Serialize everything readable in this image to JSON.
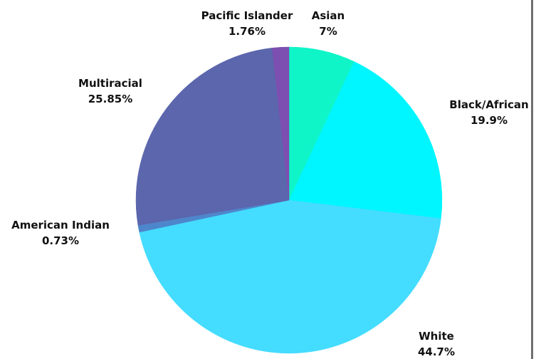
{
  "chart_data": {
    "type": "pie",
    "title": "",
    "slices": [
      {
        "label": "Asian",
        "value_label": "7%",
        "value": 7,
        "color": "#0ff5c8"
      },
      {
        "label": "Black/African",
        "value_label": "19.9%",
        "value": 19.9,
        "color": "#00f6ff"
      },
      {
        "label": "White",
        "value_label": "44.7%",
        "value": 44.7,
        "color": "#44dcff"
      },
      {
        "label": "American Indian",
        "value_label": "0.73%",
        "value": 0.73,
        "color": "#4e86cc"
      },
      {
        "label": "Multiracial",
        "value_label": "25.85%",
        "value": 25.85,
        "color": "#5b66ad"
      },
      {
        "label": "Pacific Islander",
        "value_label": "1.76%",
        "value": 1.76,
        "color": "#7c4fb0"
      }
    ],
    "start_angle": "12 o'clock",
    "direction": "clockwise",
    "legend": "none",
    "labels": "outside"
  }
}
